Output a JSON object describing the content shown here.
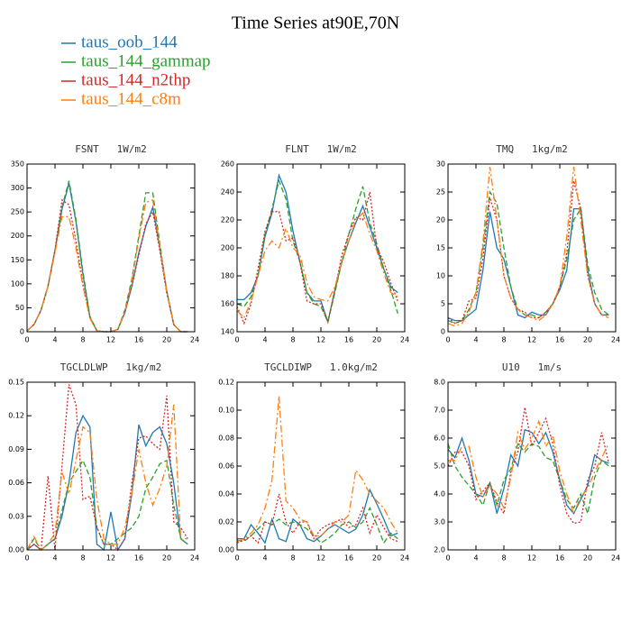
{
  "title": "Time Series at90E,70N",
  "chart_data": [
    {
      "type": "line",
      "title": "FSNT   1W/m2",
      "x": [
        0,
        1,
        2,
        3,
        4,
        5,
        6,
        7,
        8,
        9,
        10,
        11,
        12,
        13,
        14,
        15,
        16,
        17,
        18,
        19,
        20,
        21,
        22,
        23
      ],
      "xlim": [
        0,
        24
      ],
      "xticks": [
        0,
        4,
        8,
        12,
        16,
        20,
        24
      ],
      "ylim": [
        0,
        350
      ],
      "yticks": [
        0,
        50,
        100,
        150,
        200,
        250,
        300,
        350
      ],
      "series": [
        {
          "name": "taus_oob_144",
          "color": "#1f77b4",
          "dash": "solid",
          "values": [
            2,
            15,
            45,
            95,
            170,
            255,
            310,
            230,
            120,
            30,
            2,
            0,
            0,
            5,
            40,
            95,
            165,
            220,
            260,
            175,
            85,
            15,
            0,
            0
          ]
        },
        {
          "name": "taus_144_gammap",
          "color": "#2ca02c",
          "dash": "dashed",
          "values": [
            2,
            15,
            45,
            95,
            170,
            260,
            315,
            235,
            125,
            32,
            2,
            0,
            0,
            5,
            45,
            110,
            200,
            290,
            290,
            185,
            85,
            15,
            0,
            0
          ]
        },
        {
          "name": "taus_144_n2thp",
          "color": "#d62728",
          "dash": "dotted",
          "values": [
            2,
            15,
            45,
            95,
            170,
            275,
            265,
            190,
            100,
            28,
            2,
            0,
            0,
            5,
            40,
            95,
            160,
            225,
            250,
            170,
            80,
            15,
            0,
            0
          ]
        },
        {
          "name": "taus_144_c8m",
          "color": "#ff7f0e",
          "dash": "dashdot",
          "values": [
            2,
            15,
            45,
            95,
            165,
            240,
            240,
            175,
            95,
            28,
            2,
            0,
            0,
            5,
            42,
            105,
            195,
            270,
            275,
            180,
            85,
            15,
            0,
            0
          ]
        }
      ]
    },
    {
      "type": "line",
      "title": "FLNT   1W/m2",
      "x": [
        0,
        1,
        2,
        3,
        4,
        5,
        6,
        7,
        8,
        9,
        10,
        11,
        12,
        13,
        14,
        15,
        16,
        17,
        18,
        19,
        20,
        21,
        22,
        23
      ],
      "xlim": [
        0,
        24
      ],
      "xticks": [
        0,
        4,
        8,
        12,
        16,
        20,
        24
      ],
      "ylim": [
        140,
        260
      ],
      "yticks": [
        140,
        160,
        180,
        200,
        220,
        240,
        260
      ],
      "series": [
        {
          "name": "taus_oob_144",
          "color": "#1f77b4",
          "dash": "solid",
          "values": [
            163,
            163,
            168,
            180,
            208,
            225,
            252,
            240,
            212,
            190,
            168,
            162,
            162,
            147,
            170,
            190,
            205,
            218,
            230,
            215,
            200,
            185,
            172,
            168
          ]
        },
        {
          "name": "taus_144_gammap",
          "color": "#2ca02c",
          "dash": "dashed",
          "values": [
            160,
            158,
            165,
            180,
            210,
            228,
            248,
            235,
            205,
            190,
            168,
            160,
            158,
            147,
            168,
            190,
            210,
            228,
            244,
            218,
            203,
            185,
            170,
            153
          ]
        },
        {
          "name": "taus_144_n2thp",
          "color": "#d62728",
          "dash": "dotted",
          "values": [
            158,
            146,
            160,
            185,
            212,
            226,
            226,
            205,
            207,
            190,
            162,
            160,
            160,
            147,
            170,
            195,
            210,
            222,
            220,
            240,
            200,
            190,
            175,
            162
          ]
        },
        {
          "name": "taus_144_c8m",
          "color": "#ff7f0e",
          "dash": "dashdot",
          "values": [
            155,
            150,
            162,
            180,
            198,
            205,
            200,
            214,
            200,
            195,
            175,
            165,
            163,
            162,
            172,
            190,
            205,
            220,
            225,
            210,
            198,
            182,
            168,
            165
          ]
        }
      ]
    },
    {
      "type": "line",
      "title": "TMQ   1kg/m2",
      "x": [
        0,
        1,
        2,
        3,
        4,
        5,
        6,
        7,
        8,
        9,
        10,
        11,
        12,
        13,
        14,
        15,
        16,
        17,
        18,
        19,
        20,
        21,
        22,
        23
      ],
      "xlim": [
        0,
        24
      ],
      "xticks": [
        0,
        4,
        8,
        12,
        16,
        20,
        24
      ],
      "ylim": [
        0,
        30
      ],
      "yticks": [
        0,
        5,
        10,
        15,
        20,
        25,
        30
      ],
      "series": [
        {
          "name": "taus_oob_144",
          "color": "#1f77b4",
          "dash": "solid",
          "values": [
            2.5,
            2,
            2,
            3,
            4,
            11,
            21.5,
            15,
            13,
            8,
            3,
            2.5,
            3.5,
            3,
            3,
            5,
            7.5,
            11,
            22,
            22,
            11,
            5,
            3,
            3
          ]
        },
        {
          "name": "taus_144_gammap",
          "color": "#2ca02c",
          "dash": "dashed",
          "values": [
            2,
            1.5,
            2,
            4,
            7,
            15,
            25,
            23,
            15,
            8,
            4,
            3,
            3,
            2.5,
            3.5,
            5,
            8,
            13,
            20,
            22,
            12,
            7,
            4,
            3
          ]
        },
        {
          "name": "taus_144_n2thp",
          "color": "#d62728",
          "dash": "dotted",
          "values": [
            2.5,
            1.5,
            2,
            5.5,
            6,
            13,
            24,
            20,
            10,
            6,
            4,
            3.5,
            2.5,
            2.5,
            3.5,
            5,
            8,
            14,
            27,
            22,
            10,
            5,
            3,
            3
          ]
        },
        {
          "name": "taus_144_c8m",
          "color": "#ff7f0e",
          "dash": "dashdot",
          "values": [
            1.5,
            1,
            1.5,
            3.5,
            7,
            16,
            29.5,
            20,
            10,
            6,
            4,
            3,
            2.5,
            2,
            3,
            5,
            8,
            17,
            29.5,
            20,
            10,
            5,
            3,
            2.5
          ]
        }
      ]
    },
    {
      "type": "line",
      "title": "TGCLDLWP   1kg/m2",
      "x": [
        0,
        1,
        2,
        3,
        4,
        5,
        6,
        7,
        8,
        9,
        10,
        11,
        12,
        13,
        14,
        15,
        16,
        17,
        18,
        19,
        20,
        21,
        22,
        23
      ],
      "xlim": [
        0,
        24
      ],
      "xticks": [
        0,
        4,
        8,
        12,
        16,
        20,
        24
      ],
      "ylim": [
        0,
        0.15
      ],
      "yticks": [
        {
          "value": 0,
          "label": "0.00"
        },
        0.03,
        0.06,
        0.09,
        0.12,
        0.15
      ],
      "series": [
        {
          "name": "taus_oob_144",
          "color": "#1f77b4",
          "dash": "solid",
          "values": [
            0,
            0.005,
            0,
            0.005,
            0.01,
            0.03,
            0.06,
            0.105,
            0.12,
            0.11,
            0.005,
            0,
            0.034,
            0,
            0.01,
            0.05,
            0.112,
            0.093,
            0.105,
            0.11,
            0.095,
            0.06,
            0.01,
            0.005
          ]
        },
        {
          "name": "taus_144_gammap",
          "color": "#2ca02c",
          "dash": "dashed",
          "values": [
            0,
            0.01,
            0,
            0.005,
            0.01,
            0.035,
            0.06,
            0.07,
            0.08,
            0.065,
            0.02,
            0.005,
            0.005,
            0.01,
            0.015,
            0.02,
            0.03,
            0.055,
            0.065,
            0.077,
            0.08,
            0.04,
            0.01,
            0.005
          ]
        },
        {
          "name": "taus_144_n2thp",
          "color": "#d62728",
          "dash": "dotted",
          "values": [
            0,
            0.005,
            0,
            0.066,
            0,
            0.075,
            0.148,
            0.13,
            0.045,
            0.048,
            0.02,
            0.005,
            0.005,
            0,
            0.01,
            0.06,
            0.1,
            0.102,
            0.095,
            0.09,
            0.138,
            0.025,
            0.02,
            0.01
          ]
        },
        {
          "name": "taus_144_c8m",
          "color": "#ff7f0e",
          "dash": "dashdot",
          "values": [
            0,
            0.012,
            0,
            0.005,
            0.015,
            0.07,
            0.05,
            0.08,
            0.11,
            0.105,
            0.045,
            0.01,
            0.005,
            0.005,
            0.02,
            0.05,
            0.09,
            0.06,
            0.04,
            0.055,
            0.075,
            0.13,
            0.01,
            0.01
          ]
        }
      ]
    },
    {
      "type": "line",
      "title": "TGCLDIWP   1.0kg/m2",
      "x": [
        0,
        1,
        2,
        3,
        4,
        5,
        6,
        7,
        8,
        9,
        10,
        11,
        12,
        13,
        14,
        15,
        16,
        17,
        18,
        19,
        20,
        21,
        22,
        23
      ],
      "xlim": [
        0,
        24
      ],
      "xticks": [
        0,
        4,
        8,
        12,
        16,
        20,
        24
      ],
      "ylim": [
        0,
        0.12
      ],
      "yticks": [
        {
          "value": 0,
          "label": "0.00"
        },
        0.02,
        0.04,
        0.06,
        0.08,
        {
          "value": 0.1,
          "label": "0.10"
        },
        0.12
      ],
      "series": [
        {
          "name": "taus_oob_144",
          "color": "#1f77b4",
          "dash": "solid",
          "values": [
            0.008,
            0.008,
            0.018,
            0.012,
            0.005,
            0.022,
            0.008,
            0.006,
            0.022,
            0.018,
            0.008,
            0.006,
            0.01,
            0.015,
            0.018,
            0.015,
            0.012,
            0.015,
            0.025,
            0.043,
            0.033,
            0.022,
            0.01,
            0.012
          ]
        },
        {
          "name": "taus_144_gammap",
          "color": "#2ca02c",
          "dash": "dashed",
          "values": [
            0.007,
            0.006,
            0.01,
            0.015,
            0.02,
            0.018,
            0.022,
            0.018,
            0.02,
            0.018,
            0.015,
            0.01,
            0.005,
            0.008,
            0.012,
            0.018,
            0.02,
            0.016,
            0.02,
            0.03,
            0.018,
            0.005,
            0.012,
            0.008
          ]
        },
        {
          "name": "taus_144_n2thp",
          "color": "#d62728",
          "dash": "dotted",
          "values": [
            0.005,
            0.007,
            0.01,
            0.005,
            0.02,
            0.018,
            0.04,
            0.02,
            0.012,
            0.02,
            0.02,
            0.008,
            0.015,
            0.018,
            0.02,
            0.022,
            0.016,
            0.018,
            0.03,
            0.012,
            0.025,
            0.016,
            0.008,
            0.006
          ]
        },
        {
          "name": "taus_144_c8m",
          "color": "#ff7f0e",
          "dash": "dashdot",
          "values": [
            0.006,
            0.008,
            0.012,
            0.018,
            0.03,
            0.05,
            0.11,
            0.035,
            0.03,
            0.022,
            0.02,
            0.01,
            0.01,
            0.015,
            0.02,
            0.02,
            0.025,
            0.057,
            0.05,
            0.04,
            0.035,
            0.03,
            0.02,
            0.012
          ]
        }
      ]
    },
    {
      "type": "line",
      "title": "U10   1m/s",
      "x": [
        0,
        1,
        2,
        3,
        4,
        5,
        6,
        7,
        8,
        9,
        10,
        11,
        12,
        13,
        14,
        15,
        16,
        17,
        18,
        19,
        20,
        21,
        22,
        23
      ],
      "xlim": [
        0,
        24
      ],
      "xticks": [
        0,
        4,
        8,
        12,
        16,
        20,
        24
      ],
      "ylim": [
        2,
        8
      ],
      "yticks": [
        {
          "value": 2,
          "label": "2.0"
        },
        {
          "value": 3,
          "label": "3.0"
        },
        {
          "value": 4,
          "label": "4.0"
        },
        {
          "value": 5,
          "label": "5.0"
        },
        {
          "value": 6,
          "label": "6.0"
        },
        {
          "value": 7,
          "label": "7.0"
        },
        {
          "value": 8,
          "label": "8.0"
        }
      ],
      "series": [
        {
          "name": "taus_oob_144",
          "color": "#1f77b4",
          "dash": "solid",
          "values": [
            5.6,
            5.3,
            6.0,
            5.2,
            4.0,
            3.9,
            4.4,
            3.3,
            4.2,
            5.4,
            5.0,
            6.3,
            6.2,
            5.8,
            6.2,
            5.5,
            4.5,
            3.6,
            3.3,
            3.8,
            4.3,
            5.4,
            5.2,
            5.1
          ]
        },
        {
          "name": "taus_144_gammap",
          "color": "#2ca02c",
          "dash": "dashed",
          "values": [
            5.8,
            5.0,
            4.6,
            4.3,
            4.0,
            3.6,
            4.4,
            3.6,
            4.5,
            4.9,
            5.8,
            5.5,
            5.8,
            5.7,
            5.3,
            5.2,
            4.5,
            3.8,
            3.5,
            4.0,
            3.3,
            4.6,
            5.2,
            5.0
          ]
        },
        {
          "name": "taus_144_n2thp",
          "color": "#d62728",
          "dash": "dotted",
          "values": [
            5.0,
            5.5,
            5.5,
            5.0,
            3.8,
            4.1,
            4.4,
            3.7,
            3.3,
            4.8,
            5.5,
            7.1,
            5.7,
            6.2,
            6.7,
            5.8,
            4.3,
            3.3,
            2.95,
            3.0,
            4.5,
            5.0,
            6.2,
            5.1
          ]
        },
        {
          "name": "taus_144_c8m",
          "color": "#ff7f0e",
          "dash": "dashdot",
          "values": [
            5.2,
            5.2,
            5.7,
            5.7,
            4.6,
            3.9,
            4.3,
            4.0,
            3.5,
            4.6,
            6.2,
            5.6,
            6.0,
            6.6,
            5.7,
            6.1,
            4.8,
            4.0,
            3.3,
            3.9,
            4.2,
            4.8,
            5.3,
            5.8
          ]
        }
      ]
    }
  ]
}
